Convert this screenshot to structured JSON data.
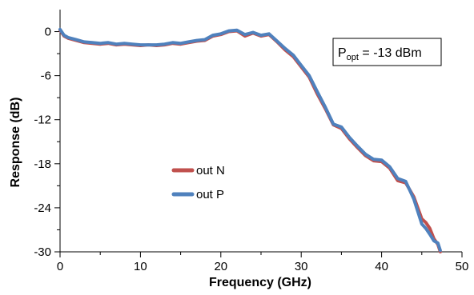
{
  "chart_data": {
    "type": "line",
    "title": "",
    "xlabel": "Frequency (GHz)",
    "ylabel": "Response (dB)",
    "xlim": [
      0,
      50
    ],
    "ylim": [
      -30,
      3
    ],
    "x_ticks": [
      "0",
      "10",
      "20",
      "30",
      "40",
      "50"
    ],
    "y_ticks": [
      "0",
      "-6",
      "-12",
      "-18",
      "-24",
      "-30"
    ],
    "grid": false,
    "legend_position": "center-left",
    "annotation": {
      "main": "P",
      "sub": "opt",
      "rest": " = -13 dBm"
    },
    "series": [
      {
        "name": "out N",
        "color": "#c0504d",
        "x": [
          0,
          0.5,
          1,
          2,
          3,
          4,
          5,
          6,
          7,
          8,
          9,
          10,
          11,
          12,
          13,
          14,
          15,
          16,
          17,
          18,
          19,
          20,
          21,
          22,
          23,
          24,
          25,
          26,
          27,
          28,
          29,
          30,
          31,
          32,
          33,
          34,
          35,
          36,
          37,
          38,
          39,
          40,
          41,
          42,
          43,
          44,
          45,
          45.5,
          46,
          46.5,
          47,
          47.3
        ],
        "y": [
          0.2,
          -0.6,
          -0.9,
          -1.2,
          -1.5,
          -1.6,
          -1.7,
          -1.6,
          -1.8,
          -1.7,
          -1.8,
          -1.9,
          -1.8,
          -1.9,
          -1.8,
          -1.6,
          -1.7,
          -1.5,
          -1.3,
          -1.2,
          -0.6,
          -0.4,
          0.0,
          0.1,
          -0.6,
          -0.2,
          -0.6,
          -0.4,
          -1.4,
          -2.5,
          -3.4,
          -4.8,
          -6.2,
          -8.5,
          -10.5,
          -12.7,
          -13.2,
          -14.6,
          -15.8,
          -16.9,
          -17.6,
          -17.7,
          -18.6,
          -20.3,
          -20.6,
          -22.5,
          -25.5,
          -26.0,
          -26.8,
          -28.2,
          -29.0,
          -30.0
        ]
      },
      {
        "name": "out P",
        "color": "#4f81bd",
        "x": [
          0,
          0.5,
          1,
          2,
          3,
          4,
          5,
          6,
          7,
          8,
          9,
          10,
          11,
          12,
          13,
          14,
          15,
          16,
          17,
          18,
          19,
          20,
          21,
          22,
          23,
          24,
          25,
          26,
          27,
          28,
          29,
          30,
          31,
          32,
          33,
          34,
          35,
          36,
          37,
          38,
          39,
          40,
          41,
          42,
          43,
          44,
          45,
          45.5,
          46,
          46.5,
          47,
          47.3
        ],
        "y": [
          0.3,
          -0.5,
          -0.8,
          -1.1,
          -1.4,
          -1.5,
          -1.6,
          -1.5,
          -1.7,
          -1.6,
          -1.7,
          -1.8,
          -1.8,
          -1.8,
          -1.7,
          -1.5,
          -1.6,
          -1.4,
          -1.2,
          -1.1,
          -0.5,
          -0.3,
          0.1,
          0.2,
          -0.4,
          -0.1,
          -0.5,
          -0.3,
          -1.3,
          -2.3,
          -3.2,
          -4.6,
          -6.0,
          -8.2,
          -10.3,
          -12.6,
          -13.0,
          -14.4,
          -15.6,
          -16.7,
          -17.4,
          -17.5,
          -18.4,
          -20.0,
          -20.4,
          -22.8,
          -26.2,
          -26.8,
          -27.6,
          -28.5,
          -28.8,
          -29.8
        ]
      }
    ]
  }
}
